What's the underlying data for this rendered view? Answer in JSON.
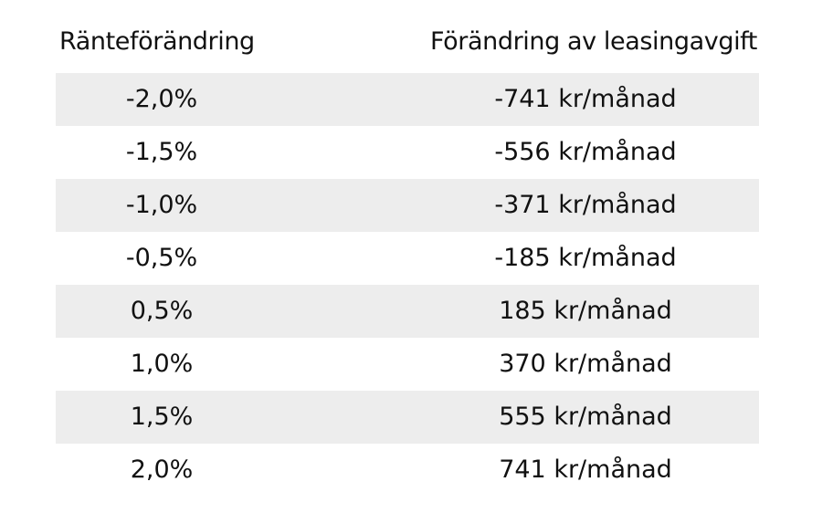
{
  "table": {
    "headers": {
      "left": "Ränteförändring",
      "right": "Förändring av leasingavgift"
    },
    "rows": [
      {
        "rate": "-2,0%",
        "fee": "-741 kr/månad"
      },
      {
        "rate": "-1,5%",
        "fee": "-556 kr/månad"
      },
      {
        "rate": "-1,0%",
        "fee": "-371 kr/månad"
      },
      {
        "rate": "-0,5%",
        "fee": "-185 kr/månad"
      },
      {
        "rate": "0,5%",
        "fee": "185 kr/månad"
      },
      {
        "rate": "1,0%",
        "fee": "370 kr/månad"
      },
      {
        "rate": "1,5%",
        "fee": "555 kr/månad"
      },
      {
        "rate": "2,0%",
        "fee": "741 kr/månad"
      }
    ],
    "stripe_color": "#ededed"
  }
}
